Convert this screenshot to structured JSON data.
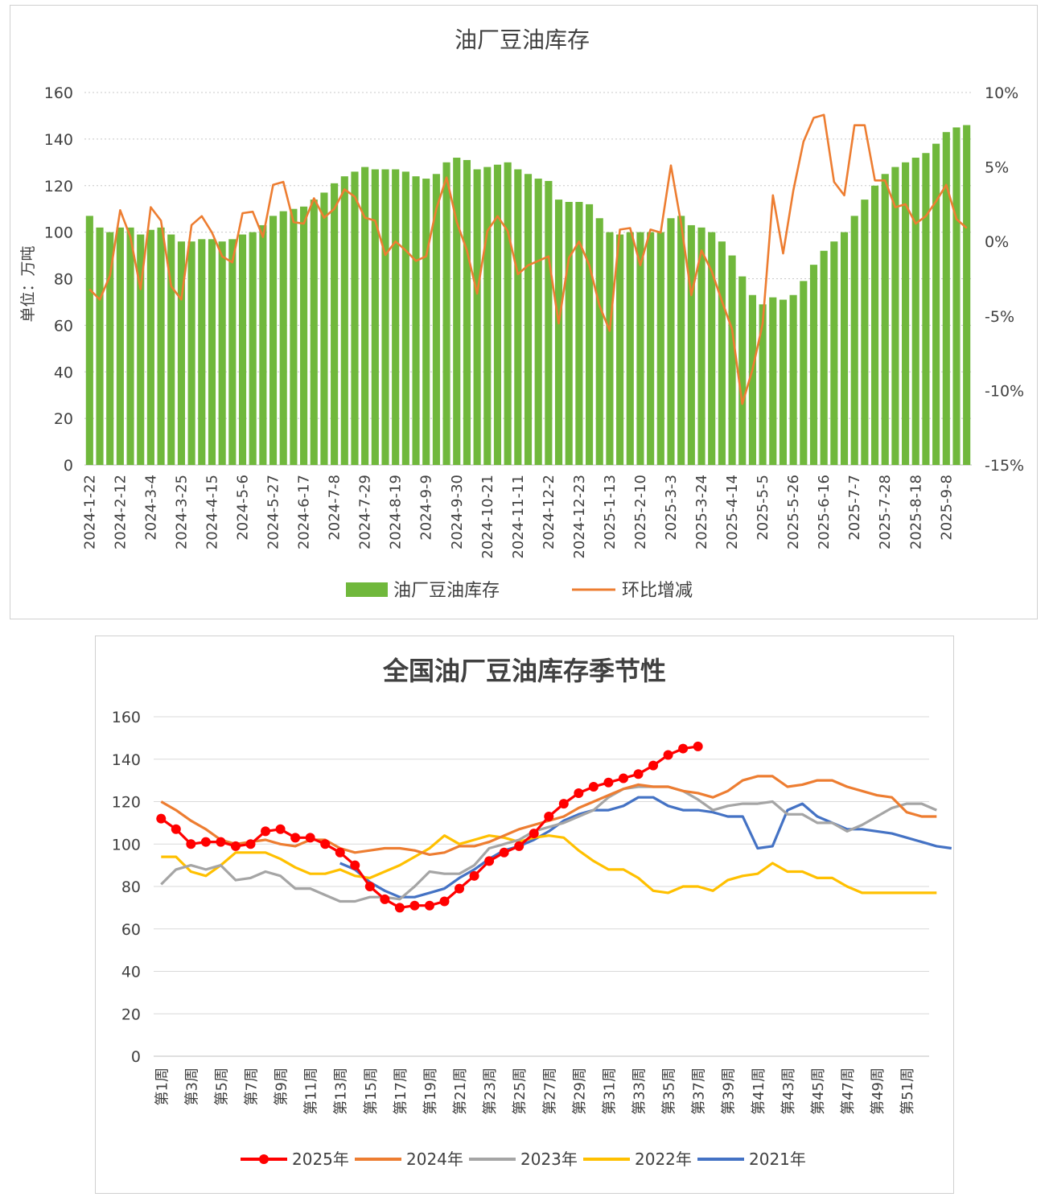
{
  "charts": [
    {
      "title": "油厂豆油库存",
      "ylabel": "单位：万吨",
      "y_ticks": [
        "0",
        "20",
        "40",
        "60",
        "80",
        "100",
        "120",
        "140",
        "160"
      ],
      "y2_ticks": [
        "-15%",
        "-10%",
        "-5%",
        "0%",
        "5%",
        "10%"
      ],
      "x_ticks": [
        "2024-1-22",
        "2024-2-12",
        "2024-3-4",
        "2024-3-25",
        "2024-4-15",
        "2024-5-6",
        "2024-5-27",
        "2024-6-17",
        "2024-7-8",
        "2024-7-29",
        "2024-8-19",
        "2024-9-9",
        "2024-9-30",
        "2024-10-21",
        "2024-11-11",
        "2024-12-2",
        "2024-12-23",
        "2025-1-13",
        "2025-2-10",
        "2025-3-3",
        "2025-3-24",
        "2025-4-14",
        "2025-5-5",
        "2025-5-26",
        "2025-6-16",
        "2025-7-7",
        "2025-7-28",
        "2025-8-18",
        "2025-9-8"
      ],
      "legend": [
        "油厂豆油库存",
        "环比增减"
      ]
    },
    {
      "title": "全国油厂豆油库存季节性",
      "y_ticks": [
        "0",
        "20",
        "40",
        "60",
        "80",
        "100",
        "120",
        "140",
        "160"
      ],
      "x_ticks": [
        "第1周",
        "第3周",
        "第5周",
        "第7周",
        "第9周",
        "第11周",
        "第13周",
        "第15周",
        "第17周",
        "第19周",
        "第21周",
        "第23周",
        "第25周",
        "第27周",
        "第29周",
        "第31周",
        "第33周",
        "第35周",
        "第37周",
        "第39周",
        "第41周",
        "第43周",
        "第45周",
        "第47周",
        "第49周",
        "第51周"
      ],
      "legend": [
        "2025年",
        "2024年",
        "2023年",
        "2022年",
        "2021年"
      ]
    }
  ],
  "chart_data": [
    {
      "type": "bar+line",
      "title": "油厂豆油库存",
      "ylabel": "单位：万吨",
      "ylim": [
        0,
        160
      ],
      "y2lim": [
        -15,
        10
      ],
      "y2_unit": "%",
      "x_tick_labels": [
        "2024-1-22",
        "2024-2-12",
        "2024-3-4",
        "2024-3-25",
        "2024-4-15",
        "2024-5-6",
        "2024-5-27",
        "2024-6-17",
        "2024-7-8",
        "2024-7-29",
        "2024-8-19",
        "2024-9-9",
        "2024-9-30",
        "2024-10-21",
        "2024-11-11",
        "2024-12-2",
        "2024-12-23",
        "2025-1-13",
        "2025-2-10",
        "2025-3-3",
        "2025-3-24",
        "2025-4-14",
        "2025-5-5",
        "2025-5-26",
        "2025-6-16",
        "2025-7-7",
        "2025-7-28",
        "2025-8-18",
        "2025-9-8"
      ],
      "series": [
        {
          "name": "油厂豆油库存",
          "type": "bar",
          "axis": "left",
          "color": "#70b83c",
          "values": [
            107,
            102,
            100,
            102,
            102,
            99,
            101,
            102,
            99,
            96,
            96,
            97,
            97,
            96,
            97,
            99,
            100,
            103,
            107,
            109,
            110,
            111,
            114,
            117,
            121,
            124,
            126,
            128,
            127,
            127,
            127,
            126,
            124,
            123,
            125,
            130,
            132,
            131,
            127,
            128,
            129,
            130,
            127,
            125,
            123,
            122,
            114,
            113,
            113,
            112,
            106,
            100,
            99,
            100,
            100,
            100,
            100,
            106,
            107,
            103,
            102,
            100,
            96,
            90,
            81,
            73,
            69,
            72,
            71,
            73,
            79,
            86,
            92,
            96,
            100,
            107,
            114,
            120,
            125,
            128,
            130,
            132,
            134,
            138,
            143,
            145,
            146
          ]
        },
        {
          "name": "环比增减",
          "type": "line",
          "axis": "right",
          "color": "#ed7d31",
          "values": [
            -3.2,
            -3.9,
            -2.3,
            2.1,
            0.3,
            -3.2,
            2.3,
            1.4,
            -3.0,
            -3.9,
            1.1,
            1.7,
            0.6,
            -1.0,
            -1.4,
            1.9,
            2.0,
            0.3,
            3.8,
            4.0,
            1.3,
            1.2,
            2.9,
            1.6,
            2.2,
            3.5,
            3.0,
            1.6,
            1.4,
            -0.9,
            0.0,
            -0.6,
            -1.3,
            -1.0,
            2.2,
            4.3,
            1.3,
            -0.6,
            -3.5,
            0.7,
            1.7,
            0.7,
            -2.2,
            -1.6,
            -1.3,
            -1.0,
            -5.5,
            -1.1,
            0.0,
            -1.6,
            -4.3,
            -6.0,
            0.8,
            0.9,
            -1.6,
            0.8,
            0.6,
            5.1,
            1.2,
            -3.6,
            -0.6,
            -2.0,
            -4.0,
            -5.9,
            -10.9,
            -8.6,
            -5.5,
            3.1,
            -0.8,
            3.4,
            6.7,
            8.3,
            8.5,
            4.0,
            3.1,
            7.8,
            7.8,
            4.1,
            4.1,
            2.3,
            2.5,
            1.2,
            1.7,
            2.7,
            3.8,
            1.5,
            0.9
          ]
        }
      ]
    },
    {
      "type": "line",
      "title": "全国油厂豆油库存季节性",
      "ylim": [
        0,
        160
      ],
      "x_tick_labels": [
        "第1周",
        "第3周",
        "第5周",
        "第7周",
        "第9周",
        "第11周",
        "第13周",
        "第15周",
        "第17周",
        "第19周",
        "第21周",
        "第23周",
        "第25周",
        "第27周",
        "第29周",
        "第31周",
        "第33周",
        "第35周",
        "第37周",
        "第39周",
        "第41周",
        "第43周",
        "第45周",
        "第47周",
        "第49周",
        "第51周"
      ],
      "series": [
        {
          "name": "2025年",
          "color": "#ff0000",
          "markers": true,
          "start_week": 1,
          "values": [
            112,
            107,
            100,
            101,
            101,
            99,
            100,
            106,
            107,
            103,
            103,
            100,
            96,
            90,
            80,
            74,
            70,
            71,
            71,
            73,
            79,
            85,
            92,
            96,
            99,
            105,
            113,
            119,
            124,
            127,
            129,
            131,
            133,
            137,
            142,
            145,
            146
          ]
        },
        {
          "name": "2024年",
          "color": "#ed7d31",
          "markers": false,
          "start_week": 1,
          "values": [
            120,
            116,
            111,
            107,
            102,
            100,
            101,
            102,
            100,
            99,
            102,
            102,
            98,
            96,
            97,
            98,
            98,
            97,
            95,
            96,
            99,
            99,
            101,
            104,
            107,
            109,
            111,
            113,
            117,
            120,
            123,
            126,
            128,
            127,
            127,
            125,
            124,
            122,
            125,
            130,
            132,
            132,
            127,
            128,
            130,
            130,
            127,
            125,
            123,
            122,
            115,
            113,
            113
          ]
        },
        {
          "name": "2023年",
          "color": "#a5a5a5",
          "markers": false,
          "start_week": 1,
          "values": [
            81,
            88,
            90,
            88,
            90,
            83,
            84,
            87,
            85,
            79,
            79,
            76,
            73,
            73,
            75,
            75,
            74,
            80,
            87,
            86,
            86,
            90,
            98,
            100,
            102,
            106,
            108,
            110,
            113,
            116,
            122,
            126,
            127,
            127,
            127,
            125,
            121,
            116,
            118,
            119,
            119,
            120,
            114,
            114,
            110,
            110,
            106,
            109,
            113,
            117,
            119,
            119,
            116
          ]
        },
        {
          "name": "2022年",
          "color": "#ffc000",
          "markers": false,
          "start_week": 1,
          "values": [
            94,
            94,
            87,
            85,
            90,
            96,
            96,
            96,
            93,
            89,
            86,
            86,
            88,
            85,
            84,
            87,
            90,
            94,
            98,
            104,
            100,
            102,
            104,
            103,
            101,
            103,
            104,
            103,
            97,
            92,
            88,
            88,
            84,
            78,
            77,
            80,
            80,
            78,
            83,
            85,
            86,
            91,
            87,
            87,
            84,
            84,
            80,
            77,
            77,
            77,
            77,
            77,
            77
          ]
        },
        {
          "name": "2021年",
          "color": "#4472c4",
          "markers": false,
          "start_week": 13,
          "values": [
            91,
            88,
            82,
            78,
            75,
            75,
            77,
            79,
            84,
            88,
            93,
            97,
            99,
            102,
            106,
            111,
            114,
            116,
            116,
            118,
            122,
            122,
            118,
            116,
            116,
            115,
            113,
            113,
            98,
            99,
            116,
            119,
            113,
            110,
            107,
            107,
            106,
            105,
            103,
            101,
            99,
            98
          ]
        }
      ]
    }
  ]
}
